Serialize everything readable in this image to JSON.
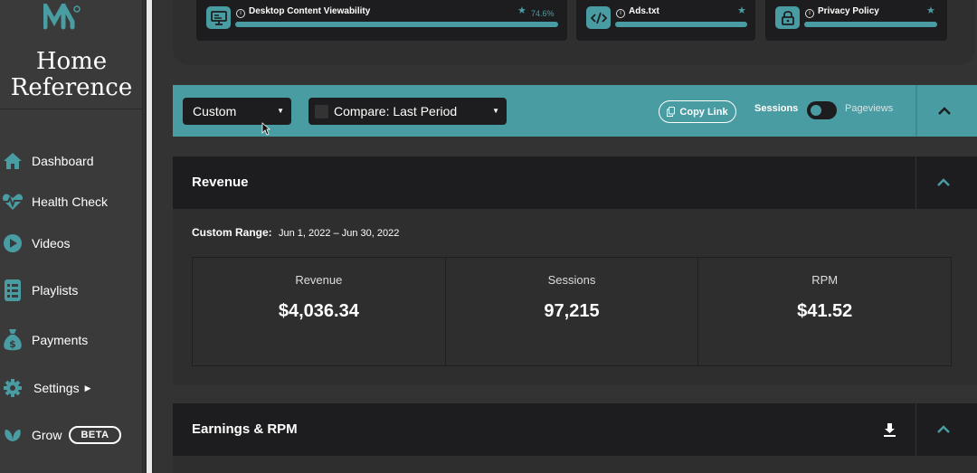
{
  "brand": {
    "line1": "Home",
    "line2": "Reference"
  },
  "sidebar": {
    "items": [
      {
        "label": "Dashboard",
        "icon": "home-icon"
      },
      {
        "label": "Health Check",
        "icon": "heartbeat-icon"
      },
      {
        "label": "Videos",
        "icon": "play-icon"
      },
      {
        "label": "Playlists",
        "icon": "list-icon"
      },
      {
        "label": "Payments",
        "icon": "money-bag-icon"
      },
      {
        "label": "Settings",
        "icon": "gear-icon"
      },
      {
        "label": "Grow",
        "icon": "leaf-icon",
        "badge": "BETA"
      }
    ]
  },
  "cards": [
    {
      "title": "Desktop Content Viewability",
      "value": "74.6%",
      "icon": "monitor-icon"
    },
    {
      "title": "Ads.txt",
      "icon": "code-icon"
    },
    {
      "title": "Privacy Policy",
      "icon": "lock-icon"
    }
  ],
  "filters": {
    "range_select": "Custom",
    "compare_select": "Compare: Last Period",
    "copy_link": "Copy Link",
    "toggle_left": "Sessions",
    "toggle_right": "Pageviews"
  },
  "revenue": {
    "title": "Revenue",
    "range_label": "Custom Range:",
    "range_dates": "Jun 1, 2022 – Jun 30, 2022",
    "stats": [
      {
        "label": "Revenue",
        "value": "$4,036.34"
      },
      {
        "label": "Sessions",
        "value": "97,215"
      },
      {
        "label": "RPM",
        "value": "$41.52"
      }
    ]
  },
  "earnings": {
    "title": "Earnings & RPM"
  },
  "colors": {
    "accent": "#4a9ca3",
    "panel": "#1d1d1f",
    "background": "#333333",
    "sidebar": "#3a3a3a"
  }
}
